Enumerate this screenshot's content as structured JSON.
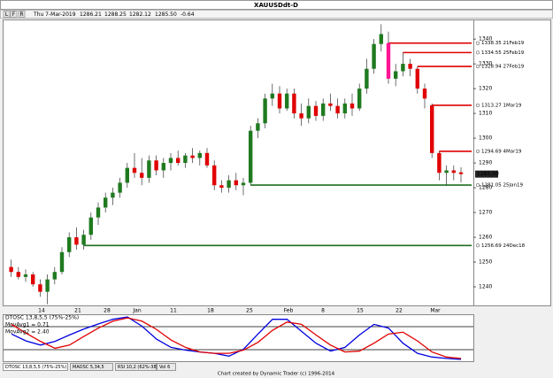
{
  "title": "XAUUSDdt-D",
  "toolbar": {
    "flags": [
      "L",
      "F",
      "R"
    ],
    "date": "Thu 7-Mar-2019",
    "fields": [
      "1286.21",
      "1288.25",
      "1282.12",
      "1285.50",
      "-0.64"
    ]
  },
  "chart_data": [
    {
      "type": "candlestick",
      "open": [
        1248,
        1246,
        1244,
        1245,
        1241,
        1238,
        1243,
        1246,
        1254,
        1260,
        1257,
        1261,
        1268,
        1272,
        1276,
        1278,
        1282,
        1288,
        1286,
        1284,
        1291,
        1287,
        1290,
        1292,
        1290,
        1293,
        1292,
        1294,
        1289,
        1281,
        1280,
        1283,
        1281,
        1282,
        1303,
        1306,
        1316,
        1318,
        1312,
        1318,
        1310,
        1308,
        1313,
        1309,
        1314,
        1313,
        1310,
        1314,
        1312,
        1320,
        1328,
        1338,
        1338.35,
        1324,
        1327,
        1330,
        1328,
        1320,
        1313.27,
        1294,
        1286,
        1287,
        1286.21
      ],
      "high": [
        1251,
        1248,
        1247,
        1246,
        1243,
        1245,
        1248,
        1256,
        1262,
        1264,
        1263,
        1270,
        1274,
        1278,
        1280,
        1284,
        1290,
        1294,
        1292,
        1293,
        1293,
        1292,
        1294,
        1295,
        1294,
        1296,
        1295,
        1296,
        1291,
        1283,
        1285,
        1286,
        1284,
        1305,
        1308,
        1318,
        1322,
        1321,
        1320,
        1320,
        1314,
        1316,
        1315,
        1316,
        1318,
        1316,
        1316,
        1318,
        1322,
        1332,
        1340,
        1346,
        1343,
        1330,
        1334.55,
        1332,
        1328.94,
        1322,
        1314,
        1294.69,
        1289,
        1289,
        1288.25
      ],
      "low": [
        1244,
        1243,
        1242,
        1240,
        1236,
        1233,
        1241,
        1245,
        1252,
        1255,
        1255,
        1259,
        1265,
        1270,
        1273,
        1276,
        1280,
        1284,
        1281,
        1282,
        1285,
        1284,
        1287,
        1289,
        1288,
        1290,
        1289,
        1288,
        1279,
        1278,
        1278,
        1279,
        1277,
        1281,
        1300,
        1304,
        1313,
        1310,
        1311,
        1308,
        1305,
        1306,
        1307,
        1307,
        1311,
        1308,
        1308,
        1309,
        1311,
        1318,
        1326,
        1335,
        1322,
        1321,
        1325,
        1325,
        1318,
        1312,
        1292,
        1283,
        1281,
        1283,
        1282.12
      ],
      "close": [
        1246,
        1244,
        1245,
        1241,
        1238,
        1243,
        1246,
        1254,
        1260,
        1257,
        1261,
        1268,
        1272,
        1276,
        1278,
        1282,
        1288,
        1286,
        1284,
        1291,
        1287,
        1290,
        1292,
        1290,
        1293,
        1292,
        1294,
        1289,
        1281,
        1280,
        1283,
        1281,
        1282,
        1303,
        1306,
        1316,
        1318,
        1312,
        1318,
        1310,
        1308,
        1313,
        1309,
        1314,
        1313,
        1310,
        1314,
        1312,
        1320,
        1328,
        1338,
        1342,
        1324,
        1327,
        1330,
        1328,
        1320,
        1316,
        1294,
        1286,
        1287,
        1286,
        1285.5
      ],
      "up_color": "#1f7a1f",
      "down_color": "#e00000",
      "ylim": [
        1232.5,
        1347.9
      ],
      "yticks": [
        1240,
        1250,
        1260,
        1270,
        1280,
        1290,
        1300,
        1310,
        1320,
        1330,
        1340
      ],
      "last_price": {
        "value": 1285.5,
        "label": "1285.50"
      },
      "xaxis_labels": [
        "14",
        "21",
        "28",
        "Jan",
        "11",
        "18",
        "25",
        "Feb",
        "8",
        "15",
        "22",
        "Mar"
      ],
      "levels": [
        {
          "value": 1338.35,
          "label": "1338.35 21Feb19",
          "color": "#e00000"
        },
        {
          "value": 1334.55,
          "label": "1334.55 25Feb19",
          "color": "#e00000"
        },
        {
          "value": 1328.94,
          "label": "1328.94 27Feb19",
          "color": "#e00000"
        },
        {
          "value": 1313.27,
          "label": "1313.27 1Mar19",
          "color": "#e00000"
        },
        {
          "value": 1294.69,
          "label": "1294.69 4Mar19",
          "color": "#e00000"
        },
        {
          "value": 1281.05,
          "label": "1281.05 25Jan19",
          "color": "#1f6e1f"
        },
        {
          "value": 1256.69,
          "label": "1256.69 24Dec18",
          "color": "#1f6e1f"
        }
      ]
    },
    {
      "type": "line",
      "title": "DTOSC 13,8,5,5 (75%-25%)",
      "ylim": [
        0,
        100
      ],
      "levels": [
        25,
        75
      ],
      "series": [
        {
          "name": "MovAvg1 = 0.71",
          "color": "#0000e0",
          "values": [
            59,
            44,
            35,
            43,
            57,
            70,
            81,
            91,
            96,
            76,
            48,
            30,
            24,
            20,
            17,
            11,
            26,
            59,
            91,
            91,
            65,
            39,
            22,
            30,
            57,
            80,
            72,
            39,
            17,
            9,
            6,
            4
          ]
        },
        {
          "name": "MovAvg2 = 2.40",
          "color": "#e00000",
          "values": [
            80,
            61,
            43,
            28,
            35,
            54,
            72,
            87,
            94,
            87,
            69,
            46,
            30,
            20,
            17,
            17,
            24,
            41,
            67,
            85,
            80,
            57,
            35,
            20,
            22,
            39,
            59,
            63,
            44,
            20,
            9,
            6
          ]
        }
      ]
    }
  ],
  "tabs": [
    "DTOSC 13,8,5,5 (75%-25%)",
    "MAOSC 5,34,5",
    "RSI 10,2 (62%-38%)",
    "Vol 6"
  ],
  "footer": "Chart created by Dynamic Trader  (c) 1996-2014"
}
